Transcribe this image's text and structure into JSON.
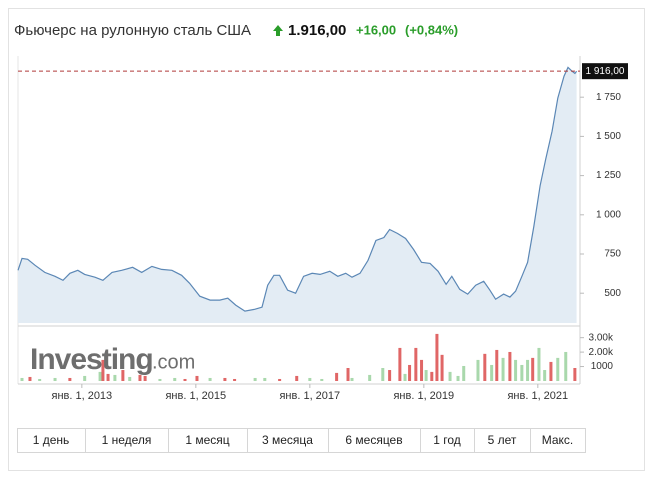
{
  "header": {
    "title": "Фьючерс на рулонную сталь США",
    "price": "1.916,00",
    "change": "+16,00",
    "change_pct": "(+0,84%)"
  },
  "logo": {
    "name": "Investing",
    "suffix": ".com"
  },
  "buttons": [
    "1 день",
    "1 неделя",
    "1 месяц",
    "3 месяца",
    "6 месяцев",
    "1 год",
    "5 лет",
    "Макс."
  ],
  "chart_data": [
    {
      "type": "area",
      "color": "#5b87b5",
      "fill": "#e3ecf4",
      "x": [
        2011.88,
        2011.95,
        2012.05,
        2012.18,
        2012.35,
        2012.53,
        2012.67,
        2012.79,
        2012.93,
        2013.05,
        2013.23,
        2013.37,
        2013.53,
        2013.7,
        2013.89,
        2014.05,
        2014.23,
        2014.4,
        2014.58,
        2014.75,
        2014.89,
        2015.07,
        2015.25,
        2015.42,
        2015.56,
        2015.7,
        2015.86,
        2016.04,
        2016.16,
        2016.26,
        2016.37,
        2016.47,
        2016.61,
        2016.75,
        2016.89,
        2017.04,
        2017.18,
        2017.35,
        2017.49,
        2017.63,
        2017.74,
        2017.88,
        2018.02,
        2018.16,
        2018.3,
        2018.4,
        2018.54,
        2018.68,
        2018.82,
        2018.96,
        2019.11,
        2019.25,
        2019.39,
        2019.49,
        2019.63,
        2019.77,
        2019.91,
        2020.05,
        2020.16,
        2020.26,
        2020.4,
        2020.51,
        2020.61,
        2020.72,
        2020.82,
        2020.93,
        2021.04,
        2021.14,
        2021.25,
        2021.35,
        2021.46,
        2021.53,
        2021.6,
        2021.65,
        2021.68
      ],
      "values": [
        646,
        722,
        716,
        678,
        633,
        608,
        582,
        627,
        646,
        620,
        602,
        582,
        633,
        646,
        665,
        633,
        671,
        652,
        646,
        614,
        563,
        481,
        456,
        456,
        468,
        424,
        386,
        398,
        411,
        551,
        614,
        614,
        519,
        500,
        608,
        627,
        620,
        640,
        608,
        627,
        602,
        627,
        709,
        836,
        855,
        906,
        881,
        849,
        779,
        697,
        690,
        640,
        557,
        608,
        525,
        494,
        551,
        576,
        519,
        462,
        494,
        475,
        513,
        608,
        697,
        925,
        1185,
        1357,
        1534,
        1744,
        1884,
        1940,
        1916,
        1902,
        1916
      ],
      "xlim": [
        2011.88,
        2021.74
      ],
      "ylim": [
        310,
        2000
      ],
      "yticks": [
        500,
        750,
        {
          "value": 1000,
          "label": "1 000"
        },
        {
          "value": 1250,
          "label": "1 250"
        },
        {
          "value": 1500,
          "label": "1 500"
        },
        {
          "value": 1750,
          "label": "1 750"
        }
      ],
      "xticks": [
        {
          "value": 2013,
          "label": "янв. 1, 2013"
        },
        {
          "value": 2015,
          "label": "янв. 1, 2015"
        },
        {
          "value": 2017,
          "label": "янв. 1, 2017"
        },
        {
          "value": 2019,
          "label": "янв. 1, 2019"
        },
        {
          "value": 2021,
          "label": "янв. 1, 2021"
        }
      ],
      "price_line": {
        "value": 1916,
        "label": "1 916,00",
        "color": "#b03a3a"
      }
    },
    {
      "type": "bar",
      "xlim": [
        2011.88,
        2021.74
      ],
      "ylim": [
        0,
        3600
      ],
      "yticks": [
        1000,
        {
          "value": 2000,
          "label": "2.00k"
        },
        {
          "value": 3000,
          "label": "3.00k"
        }
      ],
      "x": [
        2011.95,
        2012.09,
        2012.26,
        2012.53,
        2012.79,
        2013.05,
        2013.32,
        2013.37,
        2013.46,
        2013.58,
        2013.72,
        2013.84,
        2014.02,
        2014.11,
        2014.37,
        2014.63,
        2014.81,
        2015.02,
        2015.25,
        2015.51,
        2015.68,
        2016.04,
        2016.21,
        2016.47,
        2016.77,
        2017.0,
        2017.21,
        2017.47,
        2017.67,
        2017.74,
        2018.05,
        2018.28,
        2018.4,
        2018.58,
        2018.67,
        2018.75,
        2018.86,
        2018.96,
        2019.04,
        2019.14,
        2019.23,
        2019.32,
        2019.46,
        2019.6,
        2019.7,
        2019.95,
        2020.07,
        2020.19,
        2020.28,
        2020.39,
        2020.51,
        2020.61,
        2020.72,
        2020.82,
        2020.91,
        2021.02,
        2021.12,
        2021.23,
        2021.35,
        2021.49,
        2021.65
      ],
      "values": [
        210,
        280,
        140,
        210,
        210,
        350,
        630,
        1460,
        490,
        420,
        760,
        280,
        420,
        350,
        140,
        210,
        140,
        350,
        210,
        210,
        140,
        210,
        210,
        140,
        350,
        210,
        140,
        560,
        900,
        210,
        420,
        900,
        760,
        2290,
        490,
        1110,
        2290,
        1460,
        760,
        630,
        3260,
        1810,
        630,
        350,
        1040,
        1460,
        1880,
        1110,
        2150,
        1600,
        2010,
        1460,
        1110,
        1460,
        1600,
        2290,
        760,
        1320,
        1600,
        2010,
        900
      ],
      "colors": [
        "#a9d8ac",
        "#e06666",
        "#a9d8ac",
        "#a9d8ac",
        "#e06666",
        "#a9d8ac",
        "#a9d8ac",
        "#e06666",
        "#e06666",
        "#a9d8ac",
        "#e06666",
        "#a9d8ac",
        "#e06666",
        "#e06666",
        "#a9d8ac",
        "#a9d8ac",
        "#e06666",
        "#e06666",
        "#a9d8ac",
        "#e06666",
        "#e06666",
        "#a9d8ac",
        "#a9d8ac",
        "#e06666",
        "#e06666",
        "#a9d8ac",
        "#a9d8ac",
        "#e06666",
        "#e06666",
        "#a9d8ac",
        "#a9d8ac",
        "#a9d8ac",
        "#e06666",
        "#e06666",
        "#a9d8ac",
        "#e06666",
        "#e06666",
        "#e06666",
        "#a9d8ac",
        "#e06666",
        "#e06666",
        "#e06666",
        "#a9d8ac",
        "#a9d8ac",
        "#a9d8ac",
        "#a9d8ac",
        "#e06666",
        "#a9d8ac",
        "#e06666",
        "#a9d8ac",
        "#e06666",
        "#a9d8ac",
        "#a9d8ac",
        "#a9d8ac",
        "#e06666",
        "#a9d8ac",
        "#a9d8ac",
        "#e06666",
        "#a9d8ac",
        "#a9d8ac",
        "#e06666"
      ]
    }
  ]
}
